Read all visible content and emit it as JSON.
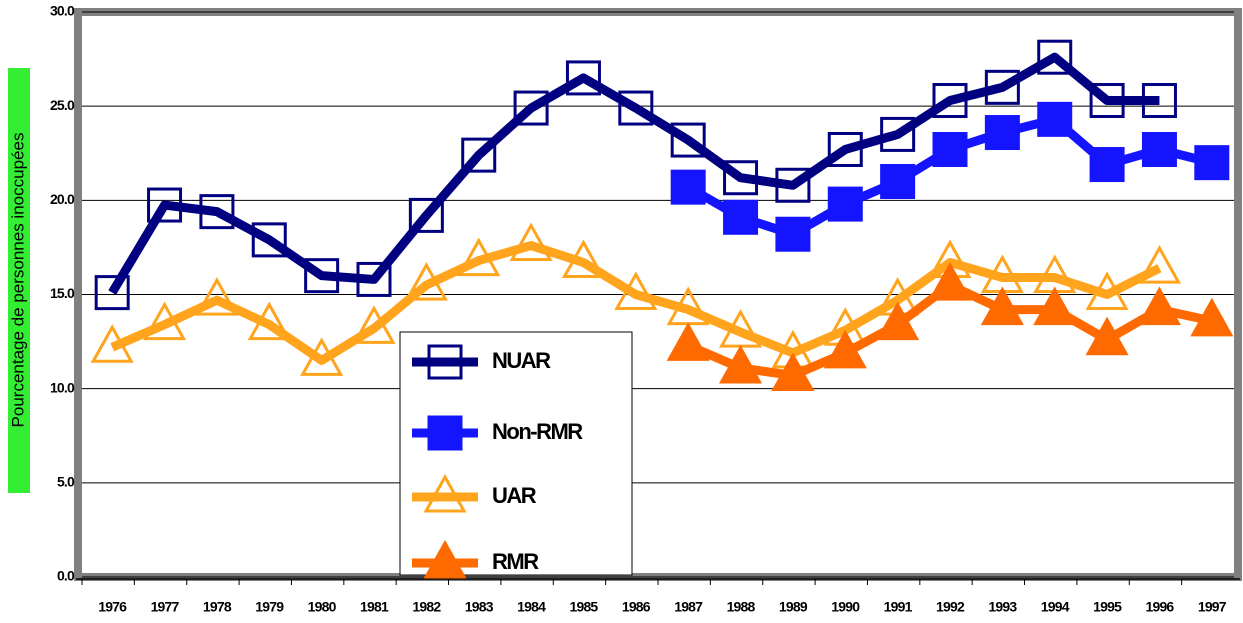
{
  "chart_data": {
    "type": "line",
    "y_label": "Pourcentage de personnes inoccupées",
    "categories": [
      "1976",
      "1977",
      "1978",
      "1979",
      "1980",
      "1981",
      "1982",
      "1983",
      "1984",
      "1985",
      "1986",
      "1987",
      "1988",
      "1989",
      "1990",
      "1991",
      "1992",
      "1993",
      "1994",
      "1995",
      "1996",
      "1997"
    ],
    "series": [
      {
        "name": "NUAR",
        "color": "#000080",
        "marker": "square",
        "filled": false,
        "values": [
          15.1,
          19.75,
          19.4,
          17.9,
          16.0,
          15.8,
          19.2,
          22.4,
          24.9,
          26.5,
          24.9,
          23.2,
          21.2,
          20.8,
          22.7,
          23.5,
          25.3,
          26.0,
          27.6,
          25.3,
          25.3,
          null
        ]
      },
      {
        "name": "Non-RMR",
        "color": "#1414ff",
        "marker": "square",
        "filled": true,
        "values": [
          null,
          null,
          null,
          null,
          null,
          null,
          null,
          null,
          null,
          null,
          null,
          20.7,
          19.1,
          18.2,
          19.8,
          21.0,
          22.7,
          23.6,
          24.3,
          21.9,
          22.7,
          22.0
        ]
      },
      {
        "name": "UAR",
        "color": "#ffa41c",
        "marker": "triangle",
        "filled": false,
        "values": [
          12.2,
          13.4,
          14.7,
          13.4,
          11.5,
          13.2,
          15.5,
          16.8,
          17.6,
          16.7,
          15.0,
          14.2,
          13.0,
          11.9,
          13.1,
          14.7,
          16.7,
          15.9,
          15.9,
          15.0,
          16.4,
          null
        ]
      },
      {
        "name": "RMR",
        "color": "#ff6a00",
        "marker": "triangle",
        "filled": true,
        "values": [
          null,
          null,
          null,
          null,
          null,
          null,
          null,
          null,
          null,
          null,
          null,
          12.3,
          11.1,
          10.7,
          11.9,
          13.4,
          15.5,
          14.2,
          14.2,
          12.6,
          14.2,
          13.6
        ]
      }
    ],
    "ylim": [
      0,
      30
    ],
    "yticks": [
      {
        "value": 0,
        "label": "0.0"
      },
      {
        "value": 5,
        "label": "5.0"
      },
      {
        "value": 10,
        "label": "10.0"
      },
      {
        "value": 15,
        "label": "15.0"
      },
      {
        "value": 20,
        "label": "20.0"
      },
      {
        "value": 25,
        "label": "25.0"
      },
      {
        "value": 30,
        "label": "30.0"
      }
    ],
    "grid": true
  }
}
